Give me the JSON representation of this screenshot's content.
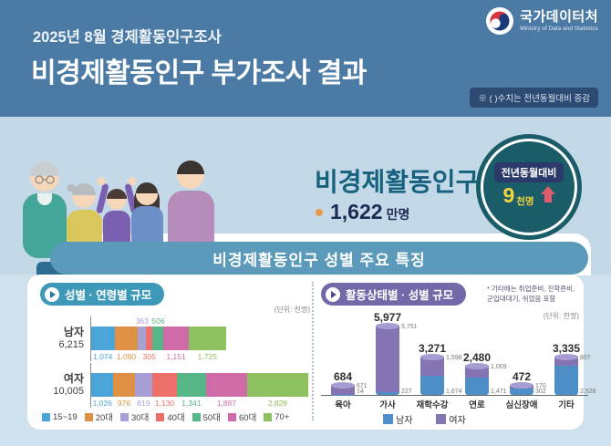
{
  "header": {
    "logo_text": "국가데이터처",
    "logo_subtext": "Ministry of Data and Statistics",
    "survey_title": "2025년 8월 경제활동인구조사",
    "main_title": "비경제활동인구 부가조사 결과",
    "note_badge": "※ ( )수치는 전년동월대비 증감"
  },
  "hero": {
    "label": "비경제활동인구",
    "value_number": "1,622",
    "value_unit": "만명",
    "badge_title": "전년동월대비",
    "badge_value": "9",
    "badge_unit": "천명",
    "badge_direction": "up"
  },
  "section_title": "비경제활동인구 성별 주요 특징",
  "colors": {
    "header_bg": "#4b7ba4",
    "hero_bg": "#c4d9e8",
    "band_bg": "#5b9aba",
    "left_pill_bg": "#3e99b8",
    "right_pill_bg": "#7368a8",
    "badge_circle": "#1a5d68",
    "badge_value_color": "#f6d33c",
    "arrow_red": "#e25a6d"
  },
  "chart_data": [
    {
      "type": "bar",
      "subtype": "horizontal-stacked",
      "title": "성별 · 연령별 규모",
      "unit_label": "(단위: 천명)",
      "categories": [
        "15~19",
        "20대",
        "30대",
        "40대",
        "50대",
        "60대",
        "70+"
      ],
      "colors": [
        "#4ba5d9",
        "#de9145",
        "#a89fd6",
        "#ec7069",
        "#56b687",
        "#cf6ba6",
        "#8dc05e"
      ],
      "max_total": 10005,
      "series": [
        {
          "name": "남자",
          "total": 6215,
          "total_label": "6,215",
          "values": [
            1074,
            1090,
            363,
            305,
            506,
            1151,
            1725
          ],
          "labels": [
            "1,074",
            "1,090",
            "363",
            "305",
            "506",
            "1,151",
            "1,725"
          ],
          "label_position": [
            "below",
            "below",
            "above",
            "below",
            "above",
            "below",
            "below"
          ]
        },
        {
          "name": "여자",
          "total": 10005,
          "total_label": "10,005",
          "values": [
            1026,
            976,
            819,
            1130,
            1341,
            1887,
            2828
          ],
          "labels": [
            "1,026",
            "976",
            "819",
            "1,130",
            "1,341",
            "1,887",
            "2,828"
          ],
          "label_position": [
            "below",
            "below",
            "below",
            "below",
            "below",
            "below",
            "below"
          ]
        }
      ]
    },
    {
      "type": "bar",
      "subtype": "vertical-stacked-cylinder",
      "title": "활동상태별 · 성별 규모",
      "unit_label": "(단위: 천명)",
      "footnote_lines": [
        "* 기타에는 취업준비, 진학준비,",
        "군입대대기, 쉬었음 포함"
      ],
      "categories": [
        "육아",
        "가사",
        "재학수강",
        "연로",
        "심신장애",
        "기타"
      ],
      "totals": [
        684,
        5977,
        3271,
        2480,
        472,
        3335
      ],
      "total_labels": [
        "684",
        "5,977",
        "3,271",
        "2,480",
        "472",
        "3,335"
      ],
      "max_value": 5977,
      "series": [
        {
          "name": "남자",
          "color": "#4f8fc7",
          "values": [
            14,
            227,
            1674,
            1471,
            302,
            2528
          ],
          "labels": [
            "14",
            "227",
            "1,674",
            "1,471",
            "302",
            "2,528"
          ]
        },
        {
          "name": "여자",
          "color": "#8474b4",
          "values": [
            671,
            5751,
            1598,
            1009,
            170,
            807
          ],
          "labels": [
            "671",
            "5,751",
            "1,598",
            "1,009",
            "170",
            "807"
          ]
        }
      ]
    }
  ]
}
